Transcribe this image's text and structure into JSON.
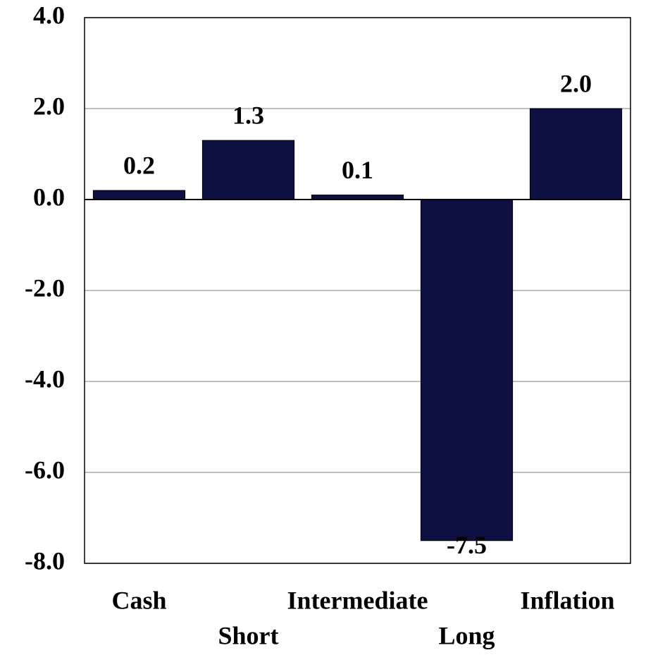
{
  "chart_data": {
    "type": "bar",
    "categories": [
      "Cash",
      "Short",
      "Intermediate",
      "Long",
      "Inflation"
    ],
    "values": [
      0.2,
      1.3,
      0.1,
      -7.5,
      2.0
    ],
    "value_labels": [
      "0.2",
      "1.3",
      "0.1",
      "-7.5",
      "2.0"
    ],
    "color": "#0d1040",
    "ylim": [
      -8,
      4
    ],
    "yticks": [
      {
        "value": -8,
        "label": "-8.0"
      },
      {
        "value": -6,
        "label": "-6.0"
      },
      {
        "value": -4,
        "label": "-4.0"
      },
      {
        "value": -2,
        "label": "-2.0"
      },
      {
        "value": 0,
        "label": "0.0"
      },
      {
        "value": 2,
        "label": "2.0"
      },
      {
        "value": 4,
        "label": "4.0"
      }
    ],
    "grid": true
  }
}
